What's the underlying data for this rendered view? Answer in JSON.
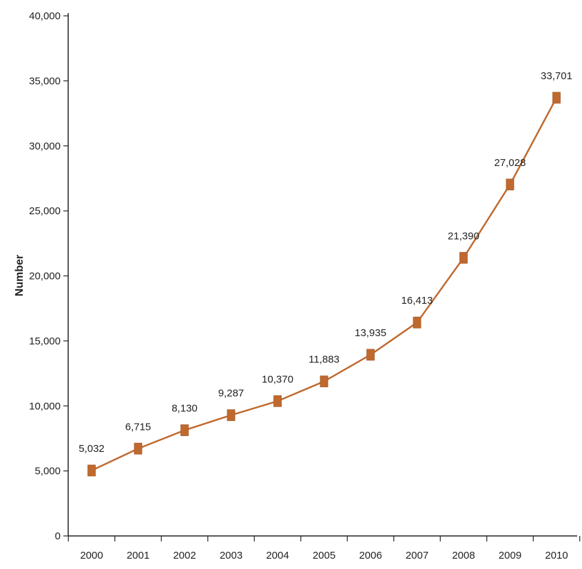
{
  "chart_data": {
    "type": "line",
    "title": "",
    "xlabel": "",
    "ylabel": "Number",
    "categories": [
      "2000",
      "2001",
      "2002",
      "2003",
      "2004",
      "2005",
      "2006",
      "2007",
      "2008",
      "2009",
      "2010"
    ],
    "series": [
      {
        "values": [
          5032,
          6715,
          8130,
          9287,
          10370,
          11883,
          13935,
          16413,
          21390,
          27028,
          33701
        ]
      }
    ],
    "data_labels": [
      "5,032",
      "6,715",
      "8,130",
      "9,287",
      "10,370",
      "11,883",
      "13,935",
      "16,413",
      "21,390",
      "27,028",
      "33,701"
    ],
    "y_ticks": [
      0,
      5000,
      10000,
      15000,
      20000,
      25000,
      30000,
      35000,
      40000
    ],
    "y_tick_labels": [
      "0",
      "5,000",
      "10,000",
      "15,000",
      "20,000",
      "25,000",
      "30,000",
      "35,000",
      "40,000"
    ],
    "ylim": [
      0,
      40000
    ],
    "grid": false,
    "legend": "none",
    "colors": {
      "series": "#c0692f",
      "marker": "#c0692f",
      "axis": "#222222"
    }
  }
}
